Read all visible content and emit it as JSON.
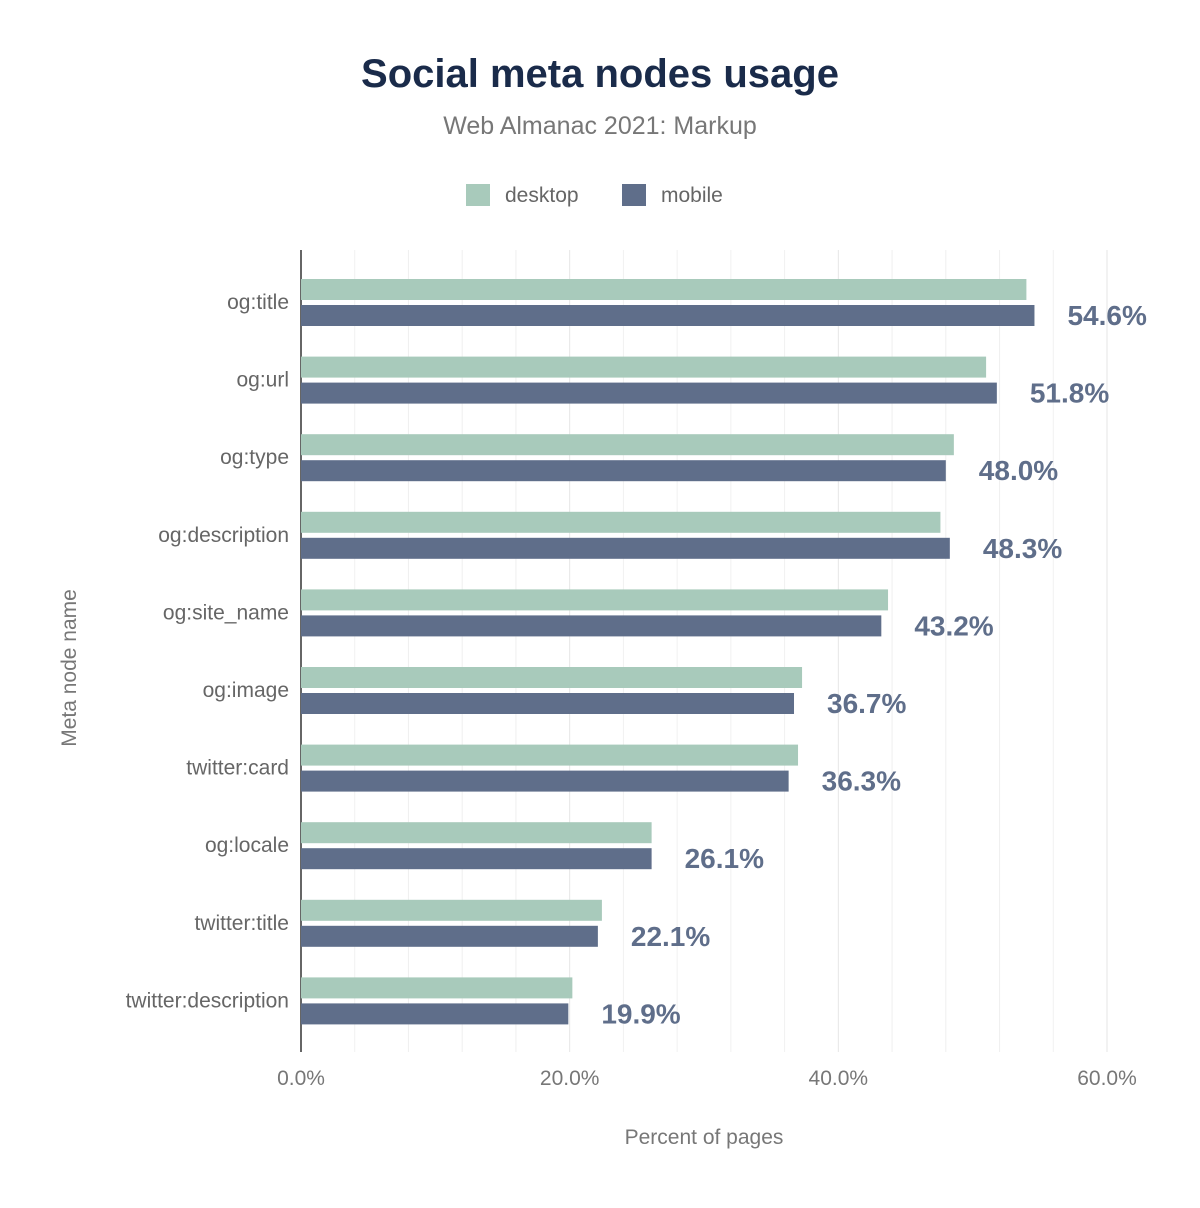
{
  "chart_data": {
    "type": "bar",
    "orientation": "horizontal",
    "title": "Social meta nodes usage",
    "subtitle": "Web Almanac 2021: Markup",
    "xlabel": "Percent of pages",
    "ylabel": "Meta node name",
    "xlim": [
      0,
      60
    ],
    "xticks": [
      "0.0%",
      "20.0%",
      "40.0%",
      "60.0%"
    ],
    "grid": true,
    "legend_placement": "top",
    "categories": [
      "og:title",
      "og:url",
      "og:type",
      "og:description",
      "og:site_name",
      "og:image",
      "twitter:card",
      "og:locale",
      "twitter:title",
      "twitter:description"
    ],
    "series": [
      {
        "name": "desktop",
        "color": "#a8cabb",
        "values": [
          54.0,
          51.0,
          48.6,
          47.6,
          43.7,
          37.3,
          37.0,
          26.1,
          22.4,
          20.2
        ]
      },
      {
        "name": "mobile",
        "color": "#5f6e8a",
        "values": [
          54.6,
          51.8,
          48.0,
          48.3,
          43.2,
          36.7,
          36.3,
          26.1,
          22.1,
          19.9
        ]
      }
    ],
    "data_labels": [
      "54.6%",
      "51.8%",
      "48.0%",
      "48.3%",
      "43.2%",
      "36.7%",
      "36.3%",
      "26.1%",
      "22.1%",
      "19.9%"
    ]
  }
}
